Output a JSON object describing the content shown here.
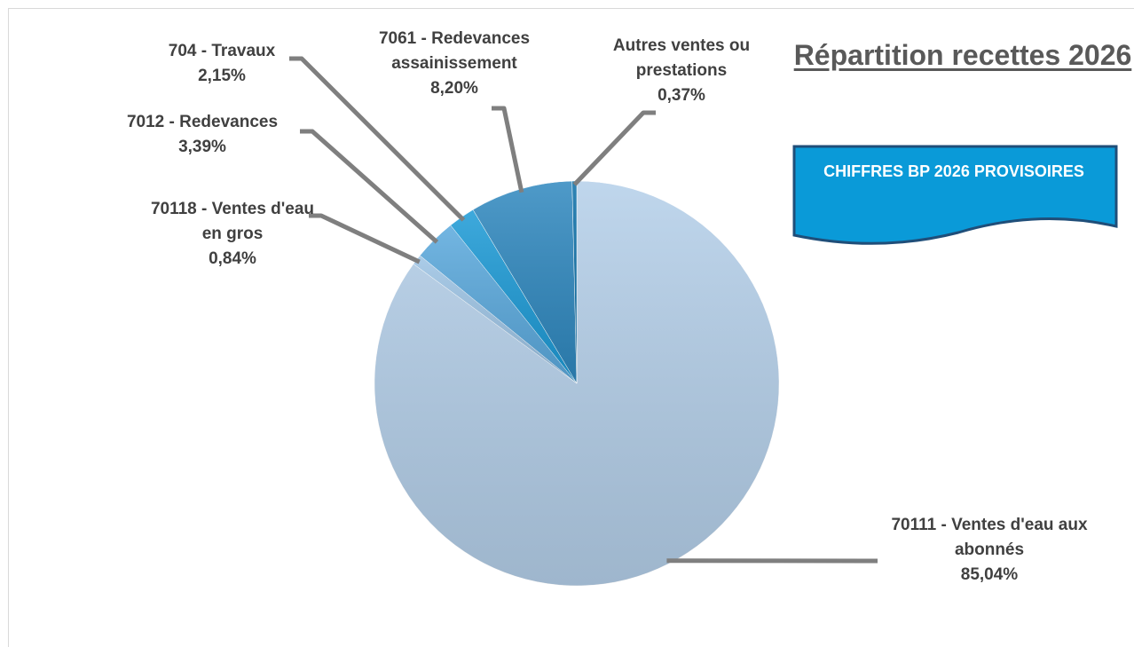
{
  "chart_data": {
    "type": "pie",
    "title": "Répartition recettes 2026",
    "annotation": "CHIFFRES BP 2026 PROVISOIRES",
    "categories": [
      "70111 - Ventes d'eau aux abonnés",
      "70118 - Ventes d'eau en gros",
      "7012 - Redevances",
      "704 - Travaux",
      "7061 - Redevances assainissement",
      "Autres ventes ou prestations"
    ],
    "values": [
      85.04,
      0.84,
      3.39,
      2.15,
      8.2,
      0.37
    ],
    "value_labels": [
      "85,04%",
      "0,84%",
      "3,39%",
      "2,15%",
      "8,20%",
      "0,37%"
    ],
    "colors": [
      "#b4cfe9",
      "#9cc3e4",
      "#5aa9dd",
      "#1c9ad6",
      "#2f88bf",
      "#0b6fa8"
    ]
  }
}
